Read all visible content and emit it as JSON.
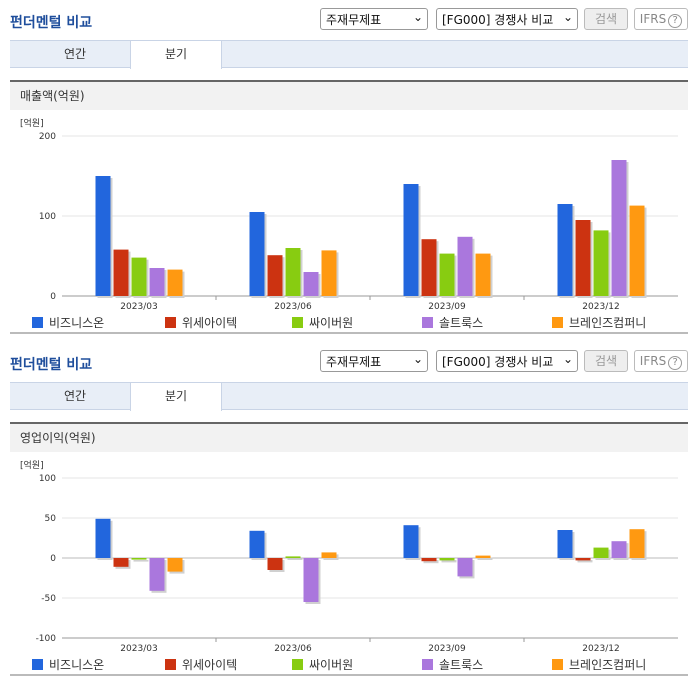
{
  "colors": [
    "#2266dd",
    "#cc3311",
    "#88cc11",
    "#aa77dd",
    "#ff9911"
  ],
  "panels": [
    {
      "title": "펀더멘털 비교",
      "select1": "주재무제표",
      "select2": "[FG000] 경쟁사 비교",
      "search_label": "검색",
      "ifrs_label": "IFRS",
      "ifrs_help": "?",
      "tabs": [
        {
          "label": "연간"
        },
        {
          "label": "분기"
        }
      ],
      "section_title": "매출액(억원)",
      "legend": [
        "비즈니스온",
        "위세아이텍",
        "싸이버원",
        "솔트룩스",
        "브레인즈컴퍼니"
      ],
      "chart_data": {
        "type": "bar",
        "unit_label": "[억원]",
        "categories": [
          "2023/03",
          "2023/06",
          "2023/09",
          "2023/12"
        ],
        "ylim": [
          0,
          200
        ],
        "yticks": [
          0,
          100,
          200
        ],
        "series": [
          {
            "name": "비즈니스온",
            "values": [
              150,
              105,
              140,
              115
            ]
          },
          {
            "name": "위세아이텍",
            "values": [
              58,
              51,
              71,
              95
            ]
          },
          {
            "name": "싸이버원",
            "values": [
              48,
              60,
              53,
              82
            ]
          },
          {
            "name": "솔트룩스",
            "values": [
              35,
              30,
              74,
              170
            ]
          },
          {
            "name": "브레인즈컴퍼니",
            "values": [
              33,
              57,
              53,
              113
            ]
          }
        ]
      }
    },
    {
      "title": "펀더멘털 비교",
      "select1": "주재무제표",
      "select2": "[FG000] 경쟁사 비교",
      "search_label": "검색",
      "ifrs_label": "IFRS",
      "ifrs_help": "?",
      "tabs": [
        {
          "label": "연간"
        },
        {
          "label": "분기"
        }
      ],
      "section_title": "영업이익(억원)",
      "legend": [
        "비즈니스온",
        "위세아이텍",
        "싸이버원",
        "솔트룩스",
        "브레인즈컴퍼니"
      ],
      "chart_data": {
        "type": "bar",
        "unit_label": "[억원]",
        "categories": [
          "2023/03",
          "2023/06",
          "2023/09",
          "2023/12"
        ],
        "ylim": [
          -100,
          100
        ],
        "yticks": [
          -100,
          -50,
          0,
          50,
          100
        ],
        "series": [
          {
            "name": "비즈니스온",
            "values": [
              49,
              34,
              41,
              35
            ]
          },
          {
            "name": "위세아이텍",
            "values": [
              -11,
              -15,
              -4,
              -3
            ]
          },
          {
            "name": "싸이버원",
            "values": [
              -2,
              2,
              -3,
              13
            ]
          },
          {
            "name": "솔트룩스",
            "values": [
              -41,
              -55,
              -23,
              21
            ]
          },
          {
            "name": "브레인즈컴퍼니",
            "values": [
              -17,
              7,
              3,
              36
            ]
          }
        ]
      }
    }
  ]
}
